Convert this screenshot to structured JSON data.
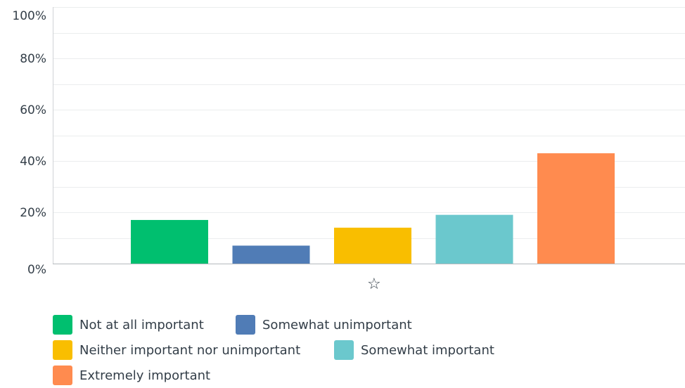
{
  "chart_data": {
    "type": "bar",
    "categories": [
      ""
    ],
    "series": [
      {
        "name": "Not at all important",
        "value": 17,
        "color": "#00bf6f"
      },
      {
        "name": "Somewhat unimportant",
        "value": 7,
        "color": "#507cb6"
      },
      {
        "name": "Neither important nor unimportant",
        "value": 14,
        "color": "#f9be00"
      },
      {
        "name": "Somewhat important",
        "value": 19,
        "color": "#6bc8cd"
      },
      {
        "name": "Extremely important",
        "value": 43,
        "color": "#ff8b4f"
      }
    ],
    "ylim": [
      0,
      100
    ],
    "yticks": [
      "0%",
      "20%",
      "40%",
      "60%",
      "80%",
      "100%"
    ],
    "grid": true,
    "legend_position": "bottom-left",
    "icon": "star-outline-icon"
  }
}
